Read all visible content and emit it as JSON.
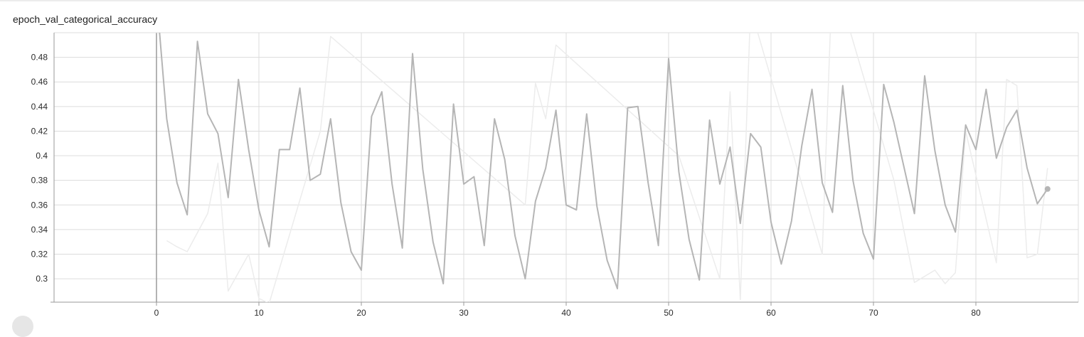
{
  "card": {
    "title": "epoch_val_categorical_accuracy"
  },
  "colors": {
    "smoothed_line": "#b5b5b5",
    "raw_line": "#ececec",
    "grid": "#dcdcdc",
    "zero_axis": "#9a9a9a",
    "end_marker": "#b5b5b5"
  },
  "chart_data": {
    "type": "line",
    "title": "epoch_val_categorical_accuracy",
    "xlabel": "",
    "ylabel": "",
    "xlim": [
      -10,
      90
    ],
    "ylim": [
      0.281,
      0.5
    ],
    "x_ticks": [
      0,
      10,
      20,
      30,
      40,
      50,
      60,
      70,
      80
    ],
    "y_ticks": [
      0.3,
      0.32,
      0.34,
      0.36,
      0.38,
      0.4,
      0.42,
      0.44,
      0.46,
      0.48
    ],
    "y_tick_labels": [
      "0.3",
      "0.32",
      "0.34",
      "0.36",
      "0.38",
      "0.4",
      "0.42",
      "0.44",
      "0.46",
      "0.48"
    ],
    "grid": true,
    "legend": "none",
    "series": [
      {
        "role": "smoothed",
        "x": [
          0,
          1,
          2,
          3,
          4,
          5,
          6,
          7,
          8,
          9,
          10,
          11,
          12,
          13,
          14,
          15,
          16,
          17,
          18,
          19,
          20,
          21,
          22,
          23,
          24,
          25,
          26,
          27,
          28,
          29,
          30,
          31,
          32,
          33,
          34,
          35,
          36,
          37,
          38,
          39,
          40,
          41,
          42,
          43,
          44,
          45,
          46,
          47,
          48,
          49,
          50,
          51,
          52,
          53,
          54,
          55,
          56,
          57,
          58,
          59,
          60,
          61,
          62,
          63,
          64,
          65,
          66,
          67,
          68,
          69,
          70,
          71,
          72,
          73,
          74,
          75,
          76,
          77,
          78,
          79,
          80,
          81,
          82,
          83,
          84,
          85,
          86,
          87
        ],
        "values": [
          0.53,
          0.43,
          0.378,
          0.352,
          0.493,
          0.434,
          0.418,
          0.366,
          0.462,
          0.405,
          0.356,
          0.326,
          0.405,
          0.405,
          0.455,
          0.38,
          0.385,
          0.43,
          0.362,
          0.322,
          0.307,
          0.432,
          0.452,
          0.377,
          0.325,
          0.483,
          0.389,
          0.33,
          0.296,
          0.442,
          0.377,
          0.383,
          0.327,
          0.43,
          0.397,
          0.335,
          0.3,
          0.363,
          0.39,
          0.437,
          0.36,
          0.356,
          0.434,
          0.359,
          0.315,
          0.292,
          0.439,
          0.44,
          0.378,
          0.327,
          0.479,
          0.387,
          0.332,
          0.299,
          0.429,
          0.377,
          0.407,
          0.345,
          0.418,
          0.407,
          0.346,
          0.312,
          0.347,
          0.408,
          0.454,
          0.378,
          0.354,
          0.457,
          0.38,
          0.337,
          0.316,
          0.458,
          0.427,
          0.39,
          0.353,
          0.465,
          0.404,
          0.36,
          0.338,
          0.425,
          0.405,
          0.454,
          0.398,
          0.423,
          0.437,
          0.39,
          0.361,
          0.373
        ]
      },
      {
        "role": "raw",
        "x": [
          1,
          2,
          3,
          5,
          6,
          7,
          9,
          10,
          11,
          16,
          17,
          36,
          37,
          38,
          39,
          51,
          55,
          56,
          57,
          58,
          65,
          66,
          72,
          73,
          74,
          76,
          77,
          78,
          79,
          82,
          83,
          84,
          85,
          86,
          87
        ],
        "values": [
          0.331,
          0.326,
          0.322,
          0.353,
          0.394,
          0.29,
          0.32,
          0.284,
          0.28,
          0.42,
          0.497,
          0.36,
          0.459,
          0.43,
          0.49,
          0.4,
          0.3,
          0.452,
          0.283,
          0.52,
          0.32,
          0.55,
          0.38,
          0.338,
          0.297,
          0.307,
          0.296,
          0.305,
          0.42,
          0.313,
          0.462,
          0.457,
          0.317,
          0.32,
          0.39
        ]
      }
    ]
  }
}
